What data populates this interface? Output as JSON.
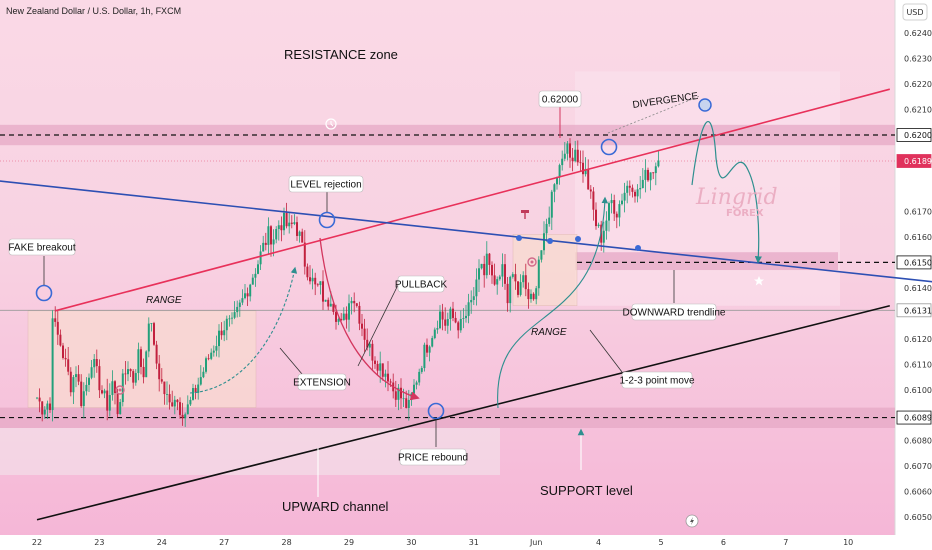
{
  "header": {
    "symbol_title": "New Zealand Dollar / U.S. Dollar, 1h, FXCM",
    "currency_button": "USD"
  },
  "watermark": {
    "brand": "Lingrid",
    "sub": "FOREX"
  },
  "chart_data": {
    "type": "candlestick",
    "title": "New Zealand Dollar / U.S. Dollar, 1h, FXCM",
    "y_axis": {
      "unit": "USD",
      "ylim": [
        0.6043,
        0.6253
      ],
      "ticks": [
        "0.62400",
        "0.62300",
        "0.62200",
        "0.62100",
        "0.62000",
        "0.61900",
        "0.61700",
        "0.61600",
        "0.61500",
        "0.61400",
        "0.61300",
        "0.61200",
        "0.61100",
        "0.61000",
        "0.60900",
        "0.60800",
        "0.60700",
        "0.60600",
        "0.60500"
      ]
    },
    "x_axis": {
      "ticks": [
        "22",
        "23",
        "24",
        "27",
        "28",
        "29",
        "30",
        "31",
        "Jun",
        "4",
        "5",
        "6",
        "7",
        "10"
      ],
      "tick_index": [
        0,
        24,
        48,
        72,
        96,
        120,
        144,
        168,
        192,
        216,
        240,
        264,
        288,
        312
      ]
    },
    "price_tags": [
      {
        "value": 0.62,
        "label": "0.62000",
        "style": "outline"
      },
      {
        "value": 0.61898,
        "label": "0.61898",
        "style": "red"
      },
      {
        "value": 0.615,
        "label": "0.61500",
        "style": "outline"
      },
      {
        "value": 0.61312,
        "label": "0.61312",
        "style": "grey"
      },
      {
        "value": 0.60891,
        "label": "0.60891",
        "style": "outline"
      }
    ],
    "ohlc_close_path": [
      [
        0,
        0.6097
      ],
      [
        2,
        0.6093
      ],
      [
        4,
        0.6095
      ],
      [
        5,
        0.6092
      ],
      [
        6,
        0.6131
      ],
      [
        7,
        0.6124
      ],
      [
        9,
        0.6118
      ],
      [
        11,
        0.611
      ],
      [
        13,
        0.6102
      ],
      [
        15,
        0.6108
      ],
      [
        17,
        0.6096
      ],
      [
        19,
        0.6102
      ],
      [
        21,
        0.6112
      ],
      [
        23,
        0.6106
      ],
      [
        25,
        0.6099
      ],
      [
        27,
        0.6094
      ],
      [
        29,
        0.6103
      ],
      [
        31,
        0.6092
      ],
      [
        33,
        0.6103
      ],
      [
        35,
        0.611
      ],
      [
        37,
        0.6104
      ],
      [
        39,
        0.6114
      ],
      [
        41,
        0.6106
      ],
      [
        42,
        0.6118
      ],
      [
        44,
        0.6128
      ],
      [
        45,
        0.6115
      ],
      [
        47,
        0.6106
      ],
      [
        49,
        0.6099
      ],
      [
        51,
        0.6094
      ],
      [
        53,
        0.6098
      ],
      [
        55,
        0.6093
      ],
      [
        57,
        0.6091
      ],
      [
        59,
        0.6095
      ],
      [
        61,
        0.61
      ],
      [
        63,
        0.6105
      ],
      [
        65,
        0.611
      ],
      [
        67,
        0.6115
      ],
      [
        69,
        0.6119
      ],
      [
        71,
        0.6124
      ],
      [
        73,
        0.6126
      ],
      [
        75,
        0.6125
      ],
      [
        77,
        0.613
      ],
      [
        79,
        0.6135
      ],
      [
        81,
        0.614
      ],
      [
        83,
        0.6145
      ],
      [
        85,
        0.615
      ],
      [
        87,
        0.6156
      ],
      [
        89,
        0.6161
      ],
      [
        91,
        0.616
      ],
      [
        93,
        0.6165
      ],
      [
        95,
        0.6166
      ],
      [
        97,
        0.6163
      ],
      [
        99,
        0.6166
      ],
      [
        101,
        0.616
      ],
      [
        103,
        0.615
      ],
      [
        105,
        0.6145
      ],
      [
        107,
        0.614
      ],
      [
        109,
        0.614
      ],
      [
        111,
        0.6133
      ],
      [
        113,
        0.6137
      ],
      [
        115,
        0.613
      ],
      [
        117,
        0.6125
      ],
      [
        119,
        0.613
      ],
      [
        121,
        0.6138
      ],
      [
        123,
        0.6133
      ],
      [
        125,
        0.6125
      ],
      [
        127,
        0.6118
      ],
      [
        129,
        0.6114
      ],
      [
        131,
        0.6111
      ],
      [
        133,
        0.6108
      ],
      [
        135,
        0.6106
      ],
      [
        137,
        0.61
      ],
      [
        139,
        0.6099
      ],
      [
        141,
        0.6095
      ],
      [
        143,
        0.6093
      ],
      [
        145,
        0.6101
      ],
      [
        147,
        0.6108
      ],
      [
        149,
        0.6115
      ],
      [
        151,
        0.612
      ],
      [
        153,
        0.6125
      ],
      [
        155,
        0.613
      ],
      [
        157,
        0.6126
      ],
      [
        159,
        0.6129
      ],
      [
        161,
        0.6127
      ],
      [
        163,
        0.6125
      ],
      [
        165,
        0.6129
      ],
      [
        167,
        0.6134
      ],
      [
        169,
        0.614
      ],
      [
        171,
        0.615
      ],
      [
        172,
        0.6145
      ],
      [
        173,
        0.6152
      ],
      [
        175,
        0.6142
      ],
      [
        177,
        0.614
      ],
      [
        179,
        0.6147
      ],
      [
        181,
        0.6137
      ],
      [
        183,
        0.6145
      ],
      [
        185,
        0.6138
      ],
      [
        187,
        0.6143
      ],
      [
        189,
        0.6136
      ],
      [
        191,
        0.6134
      ],
      [
        193,
        0.6152
      ],
      [
        195,
        0.6158
      ],
      [
        197,
        0.617
      ],
      [
        199,
        0.6183
      ],
      [
        201,
        0.6188
      ],
      [
        203,
        0.6196
      ],
      [
        205,
        0.6191
      ],
      [
        207,
        0.6195
      ],
      [
        209,
        0.6188
      ],
      [
        211,
        0.6185
      ],
      [
        213,
        0.6175
      ],
      [
        215,
        0.6165
      ],
      [
        217,
        0.616
      ],
      [
        219,
        0.6167
      ],
      [
        221,
        0.6174
      ],
      [
        223,
        0.617
      ],
      [
        225,
        0.6176
      ],
      [
        227,
        0.618
      ],
      [
        229,
        0.6181
      ],
      [
        231,
        0.6177
      ],
      [
        233,
        0.6182
      ],
      [
        235,
        0.6185
      ],
      [
        237,
        0.6187
      ],
      [
        239,
        0.619
      ]
    ],
    "levels": [
      {
        "name": "resistance",
        "value": 0.62
      },
      {
        "name": "mid-level",
        "value": 0.615
      },
      {
        "name": "support",
        "value": 0.60891
      }
    ],
    "trendlines": [
      {
        "name": "upward-channel-top",
        "color": "#e8315a",
        "from": [
          7,
          0.6131
        ],
        "to": [
          328,
          0.6218
        ]
      },
      {
        "name": "downward-trendline",
        "color": "#2d4fb3",
        "from": [
          -15,
          0.6182
        ],
        "to": [
          348,
          0.6142
        ]
      },
      {
        "name": "upward-channel-bottom",
        "color": "#111111",
        "from": [
          0,
          0.6049
        ],
        "to": [
          328,
          0.6133
        ]
      }
    ],
    "annotations": {
      "resistance_zone": "RESISTANCE zone",
      "fake_breakout": "FAKE breakout",
      "range_left": "RANGE",
      "level_rejection": "LEVEL rejection",
      "pullback": "PULLBACK",
      "extension": "EXTENSION",
      "price_rebound": "PRICE rebound",
      "upward_channel": "UPWARD channel",
      "support_level": "SUPPORT level",
      "range_mid": "RANGE",
      "one_two_three": "1-2-3 point move",
      "downward_trendline": "DOWNWARD trendline",
      "level_0620": "0.62000",
      "divergence": "DIVERGENCE"
    },
    "zones": {
      "resistance_zone": [
        0.6196,
        0.6204
      ],
      "support_zone": [
        0.6085,
        0.6093
      ],
      "mid_zone": [
        0.6147,
        0.6154
      ]
    }
  }
}
